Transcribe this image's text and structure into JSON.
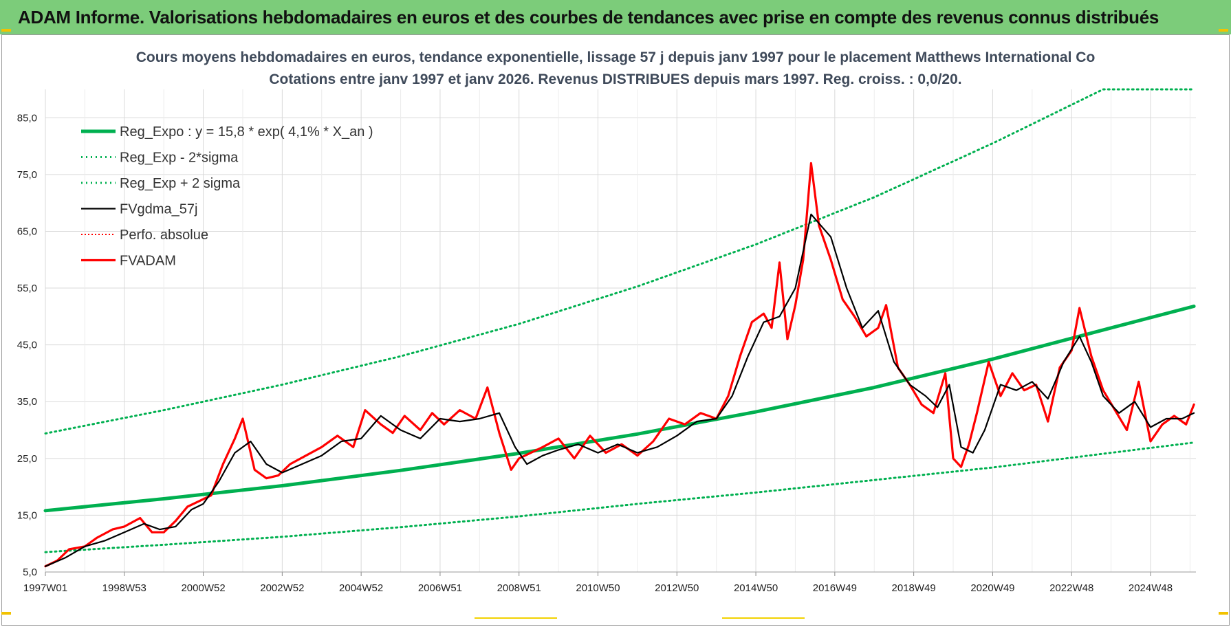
{
  "banner": {
    "title": "ADAM Informe. Valorisations hebdomadaires en euros et des courbes de tendances avec prise en compte des revenus connus distribués"
  },
  "colors": {
    "banner_bg": "#7ccc7a",
    "regression": "#00b050",
    "smoothed": "#000000",
    "price": "#ff0000",
    "corner_marks": "#f2c200"
  },
  "chart_data": {
    "type": "line",
    "title_line1": "Cours moyens hebdomadaires en euros, tendance exponentielle, lissage 57 j depuis janv 1997 pour le placement Matthews International Co",
    "title_line2": "Cotations entre janv 1997 et janv 2026. Revenus DISTRIBUES depuis mars 1997.  Reg. croiss. : 0,0/20.",
    "ylim": [
      5,
      90
    ],
    "y_ticks": [
      "5,0",
      "15,0",
      "25,0",
      "35,0",
      "45,0",
      "55,0",
      "65,0",
      "75,0",
      "85,0"
    ],
    "x_ticks": [
      "1997W01",
      "1998W53",
      "2000W52",
      "2002W52",
      "2004W52",
      "2006W51",
      "2008W51",
      "2010W50",
      "2012W50",
      "2014W50",
      "2016W49",
      "2018W49",
      "2020W49",
      "2022W48",
      "2024W48"
    ],
    "grid": "vertical and horizontal light gray",
    "legend_position": "top-left",
    "series": [
      {
        "name": "Reg_Expo : y = 15,8 * exp( 4,1% *  X_an )",
        "style": "solid-thick",
        "color": "#00b050",
        "x": [
          1997,
          2000,
          2003,
          2006,
          2009,
          2012,
          2015,
          2018,
          2021,
          2024,
          2026.1
        ],
        "values": [
          15.8,
          17.9,
          20.2,
          22.9,
          25.9,
          29.3,
          33.2,
          37.5,
          42.5,
          48.0,
          51.8
        ]
      },
      {
        "name": "Reg_Exp - 2*sigma",
        "style": "dotted",
        "color": "#00b050",
        "x": [
          1997,
          2000,
          2003,
          2006,
          2009,
          2012,
          2015,
          2018,
          2021,
          2024,
          2026.1
        ],
        "values": [
          8.5,
          9.8,
          11.2,
          12.9,
          14.8,
          17.0,
          19.0,
          21.2,
          23.4,
          26.0,
          27.8
        ]
      },
      {
        "name": "Reg_Exp + 2 sigma",
        "style": "dotted",
        "color": "#00b050",
        "x": [
          1997,
          2000,
          2003,
          2006,
          2009,
          2012,
          2015,
          2018,
          2021,
          2023.8,
          2026.1
        ],
        "values": [
          29.4,
          33.5,
          38.0,
          43.0,
          48.7,
          55.3,
          62.7,
          71.0,
          80.5,
          90.0,
          90.0
        ]
      },
      {
        "name": "FVgdma_57j",
        "style": "solid",
        "color": "#000000",
        "x": [
          1997,
          1997.5,
          1998,
          1998.5,
          1999,
          1999.5,
          1999.9,
          2000.3,
          2000.7,
          2001,
          2001.4,
          2001.8,
          2002.2,
          2002.6,
          2003,
          2003.5,
          2004,
          2004.5,
          2005,
          2005.5,
          2006,
          2006.5,
          2007,
          2007.5,
          2008,
          2008.5,
          2008.9,
          2009.2,
          2009.6,
          2010,
          2010.5,
          2011,
          2011.5,
          2012,
          2012.5,
          2013,
          2013.5,
          2014,
          2014.4,
          2014.8,
          2015.2,
          2015.6,
          2016,
          2016.4,
          2016.9,
          2017.3,
          2017.7,
          2018.1,
          2018.5,
          2018.9,
          2019.3,
          2019.6,
          2019.9,
          2020.2,
          2020.5,
          2020.8,
          2021.2,
          2021.6,
          2022,
          2022.4,
          2022.8,
          2023.2,
          2023.5,
          2023.8,
          2024.2,
          2024.6,
          2025,
          2025.4,
          2025.8,
          2026.1
        ],
        "values": [
          6.0,
          7.5,
          9.5,
          10.5,
          12.0,
          13.5,
          12.5,
          13.0,
          16.0,
          17.0,
          21.0,
          26.0,
          28.0,
          24.0,
          22.5,
          24.0,
          25.5,
          28.0,
          28.5,
          32.5,
          30.0,
          28.5,
          32.0,
          31.5,
          32.0,
          33.0,
          27.0,
          24.0,
          25.5,
          26.5,
          27.5,
          26.0,
          27.5,
          26.0,
          27.0,
          29.0,
          31.5,
          32.0,
          36.0,
          43.0,
          49.0,
          50.0,
          55.0,
          68.0,
          64.0,
          55.0,
          48.0,
          51.0,
          42.0,
          38.0,
          36.0,
          34.0,
          38.0,
          27.0,
          26.0,
          30.0,
          38.0,
          37.0,
          38.5,
          35.5,
          42.0,
          46.5,
          42.0,
          36.0,
          33.0,
          35.0,
          30.5,
          32.0,
          32.0,
          33.0
        ]
      },
      {
        "name": "Perfo. absolue",
        "style": "dotted-thin",
        "color": "#ff0000",
        "x": [],
        "values": []
      },
      {
        "name": "FVADAM",
        "style": "solid-thick",
        "color": "#ff0000",
        "x": [
          1997,
          1997.3,
          1997.6,
          1998,
          1998.3,
          1998.7,
          1999,
          1999.4,
          1999.7,
          2000,
          2000.3,
          2000.6,
          2000.9,
          2001.2,
          2001.5,
          2001.8,
          2002,
          2002.3,
          2002.6,
          2002.9,
          2003.2,
          2003.6,
          2004,
          2004.4,
          2004.8,
          2005.1,
          2005.5,
          2005.8,
          2006.1,
          2006.5,
          2006.8,
          2007.1,
          2007.5,
          2007.9,
          2008.2,
          2008.5,
          2008.8,
          2009,
          2009.3,
          2009.6,
          2010,
          2010.4,
          2010.8,
          2011.2,
          2011.6,
          2012,
          2012.4,
          2012.8,
          2013.2,
          2013.6,
          2014,
          2014.3,
          2014.6,
          2014.9,
          2015.2,
          2015.4,
          2015.6,
          2015.8,
          2016,
          2016.2,
          2016.4,
          2016.6,
          2016.9,
          2017.2,
          2017.5,
          2017.8,
          2018.1,
          2018.3,
          2018.6,
          2018.9,
          2019.2,
          2019.5,
          2019.8,
          2020,
          2020.2,
          2020.4,
          2020.6,
          2020.9,
          2021.2,
          2021.5,
          2021.8,
          2022.1,
          2022.4,
          2022.7,
          2023,
          2023.2,
          2023.5,
          2023.8,
          2024.1,
          2024.4,
          2024.7,
          2025,
          2025.3,
          2025.6,
          2025.9,
          2026.1
        ],
        "values": [
          6.0,
          7.0,
          9.0,
          9.5,
          11.0,
          12.5,
          13.0,
          14.5,
          12.0,
          12.0,
          14.0,
          16.5,
          17.5,
          18.5,
          24.0,
          28.5,
          32.0,
          23.0,
          21.5,
          22.0,
          24.0,
          25.5,
          27.0,
          29.0,
          27.0,
          33.5,
          31.0,
          29.5,
          32.5,
          30.0,
          33.0,
          31.0,
          33.5,
          32.0,
          37.5,
          29.5,
          23.0,
          25.0,
          26.0,
          27.0,
          28.5,
          25.0,
          29.0,
          26.0,
          27.5,
          25.5,
          28.0,
          32.0,
          31.0,
          33.0,
          32.0,
          36.0,
          43.0,
          49.0,
          50.5,
          48.0,
          59.5,
          46.0,
          52.0,
          60.0,
          77.0,
          66.0,
          60.0,
          53.0,
          50.0,
          46.5,
          48.0,
          52.0,
          41.0,
          38.0,
          34.5,
          33.0,
          40.0,
          25.0,
          23.5,
          27.5,
          33.0,
          42.0,
          36.0,
          40.0,
          37.0,
          38.0,
          31.5,
          41.0,
          44.0,
          51.5,
          43.0,
          37.0,
          33.5,
          30.0,
          38.5,
          28.0,
          31.0,
          32.5,
          31.0,
          34.5
        ]
      }
    ]
  }
}
